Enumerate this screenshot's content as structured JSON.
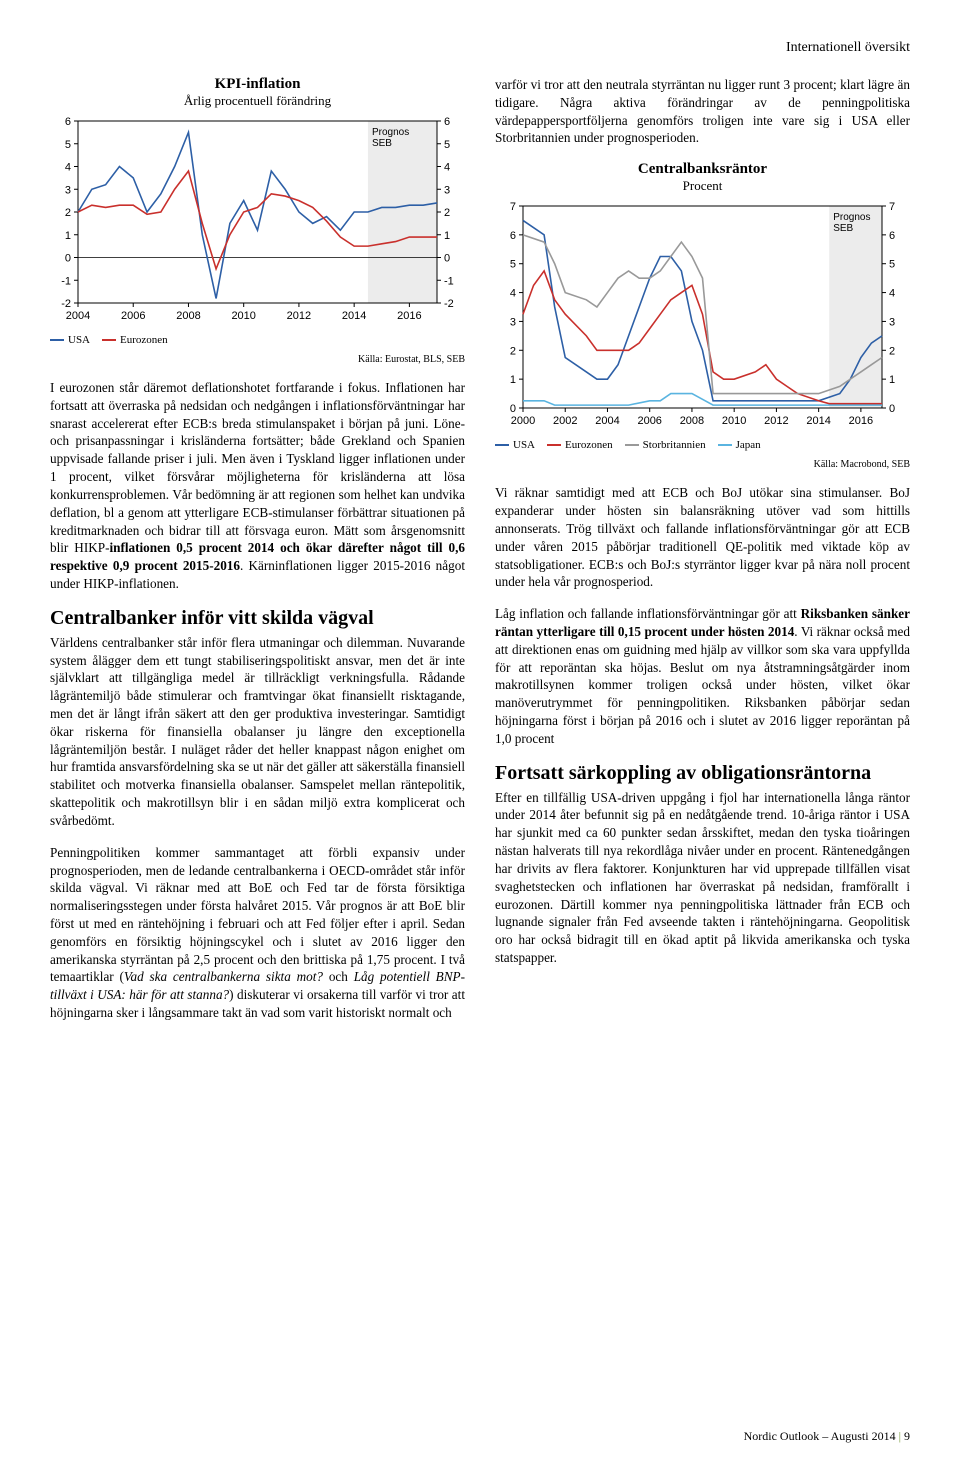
{
  "header": {
    "section": "Internationell översikt"
  },
  "left": {
    "chart1": {
      "type": "line",
      "title": "KPI-inflation",
      "subtitle": "Årlig procentuell förändring",
      "source": "Källa: Eurostat, BLS, SEB",
      "x_ticks": [
        2004,
        2006,
        2008,
        2010,
        2012,
        2014,
        2016
      ],
      "y_ticks": [
        -2,
        -1,
        0,
        1,
        2,
        3,
        4,
        5,
        6
      ],
      "xlim": [
        2004,
        2017
      ],
      "ylim": [
        -2,
        6
      ],
      "prognos_label": "Prognos SEB",
      "prognos_start": 2014.5,
      "background": "#ffffff",
      "grid_color": "#dcdcdc",
      "axis_color": "#000000",
      "series": [
        {
          "name": "USA",
          "color": "#2d5fa6",
          "data": [
            [
              2004,
              2.0
            ],
            [
              2004.5,
              3.0
            ],
            [
              2005,
              3.2
            ],
            [
              2005.5,
              4.0
            ],
            [
              2006,
              3.5
            ],
            [
              2006.5,
              2.0
            ],
            [
              2007,
              2.8
            ],
            [
              2007.5,
              4.0
            ],
            [
              2008,
              5.5
            ],
            [
              2008.5,
              1.0
            ],
            [
              2009,
              -1.8
            ],
            [
              2009.5,
              1.5
            ],
            [
              2010,
              2.5
            ],
            [
              2010.5,
              1.2
            ],
            [
              2011,
              3.8
            ],
            [
              2011.5,
              3.0
            ],
            [
              2012,
              2.0
            ],
            [
              2012.5,
              1.5
            ],
            [
              2013,
              1.8
            ],
            [
              2013.5,
              1.2
            ],
            [
              2014,
              2.0
            ],
            [
              2014.5,
              2.0
            ],
            [
              2015,
              2.2
            ],
            [
              2015.5,
              2.2
            ],
            [
              2016,
              2.3
            ],
            [
              2016.5,
              2.3
            ],
            [
              2017,
              2.4
            ]
          ]
        },
        {
          "name": "Eurozonen",
          "color": "#c9302c",
          "data": [
            [
              2004,
              2.0
            ],
            [
              2004.5,
              2.3
            ],
            [
              2005,
              2.2
            ],
            [
              2005.5,
              2.3
            ],
            [
              2006,
              2.3
            ],
            [
              2006.5,
              1.9
            ],
            [
              2007,
              2.0
            ],
            [
              2007.5,
              3.0
            ],
            [
              2008,
              3.8
            ],
            [
              2008.5,
              1.5
            ],
            [
              2009,
              -0.5
            ],
            [
              2009.5,
              1.0
            ],
            [
              2010,
              2.0
            ],
            [
              2010.5,
              2.2
            ],
            [
              2011,
              2.8
            ],
            [
              2011.5,
              2.7
            ],
            [
              2012,
              2.5
            ],
            [
              2012.5,
              2.2
            ],
            [
              2013,
              1.6
            ],
            [
              2013.5,
              0.9
            ],
            [
              2014,
              0.5
            ],
            [
              2014.5,
              0.5
            ],
            [
              2015,
              0.6
            ],
            [
              2015.5,
              0.7
            ],
            [
              2016,
              0.9
            ],
            [
              2016.5,
              0.9
            ],
            [
              2017,
              0.9
            ]
          ]
        }
      ],
      "legend": [
        "USA",
        "Eurozonen"
      ]
    },
    "para1": "I eurozonen står däremot deflationshotet fortfarande i fokus. Inflationen har fortsatt att överraska på nedsidan och nedgången i inflationsförväntningar har snarast accelererat efter ECB:s breda stimulanspaket i början på juni. Löne- och prisanpassningar i krisländerna fortsätter; både Grekland och Spanien uppvisade fallande priser i juli. Men även i Tyskland ligger inflationen under 1 procent, vilket försvårar möjligheterna för krisländerna att lösa konkurrensproblemen. Vår bedömning är att regionen som helhet kan undvika deflation, bl a genom att ytterligare ECB-stimulanser förbättrar situationen på kreditmarknaden och bidrar till att försvaga euron. Mätt som årsgenomsnitt blir HIKP-inflationen 0,5 procent 2014 och ökar därefter något till 0,6 respektive 0,9 procent 2015-2016. Kärninflationen ligger 2015-2016 något under HIKP-inflationen.",
    "heading1": "Centralbanker inför vitt skilda vägval",
    "para2": "Världens centralbanker står inför flera utmaningar och dilemman. Nuvarande system ålägger dem ett tungt stabiliseringspolitiskt ansvar, men det är inte självklart att tillgängliga medel är tillräckligt verkningsfulla. Rådande lågräntemiljö både stimulerar och framtvingar ökat finansiellt risktagande, men det är långt ifrån säkert att den ger produktiva investeringar. Samtidigt ökar riskerna för finansiella obalanser ju längre den exceptionella lågräntemiljön består. I nuläget råder det heller knappast någon enighet om hur framtida ansvarsfördelning ska se ut när det gäller att säkerställa finansiell stabilitet och motverka finansiella obalanser. Samspelet mellan räntepolitik, skattepolitik och makrotillsyn blir i en sådan miljö extra komplicerat och svårbedömt.",
    "para3": "Penningpolitiken kommer sammantaget att förbli expansiv under prognosperioden, men de ledande centralbankerna i OECD-området står inför skilda vägval. Vi räknar med att BoE och Fed tar de första försiktiga normaliseringsstegen under första halvåret 2015. Vår prognos är att BoE blir först ut med en räntehöjning i februari och att Fed följer efter i april. Sedan genomförs en försiktig höjningscykel och i slutet av 2016 ligger den amerikanska styrräntan på 2,5 procent och den brittiska på 1,75 procent. I två temaartiklar (Vad ska centralbankerna sikta mot? och Låg potentiell BNP-tillväxt i USA: här för att stanna?) diskuterar vi orsakerna till varför vi tror att höjningarna sker i långsammare takt än vad som varit historiskt normalt och"
  },
  "right": {
    "para1": "varför vi tror att den neutrala styrräntan nu ligger runt 3 procent; klart lägre än tidigare. Några aktiva förändringar av de penningpolitiska värdepappersportföljerna genomförs troligen inte vare sig i USA eller Storbritannien under prognosperioden.",
    "chart2": {
      "type": "line-step",
      "title": "Centralbanksräntor",
      "subtitle": "Procent",
      "source": "Källa: Macrobond, SEB",
      "x_ticks": [
        2000,
        2002,
        2004,
        2006,
        2008,
        2010,
        2012,
        2014,
        2016
      ],
      "y_ticks": [
        0,
        1,
        2,
        3,
        4,
        5,
        6,
        7
      ],
      "xlim": [
        2000,
        2017
      ],
      "ylim": [
        0,
        7
      ],
      "prognos_label": "Prognos SEB",
      "prognos_start": 2014.5,
      "background": "#ffffff",
      "grid_color": "#dcdcdc",
      "axis_color": "#000000",
      "series": [
        {
          "name": "USA",
          "color": "#2d5fa6",
          "data": [
            [
              2000,
              6.5
            ],
            [
              2001,
              6.0
            ],
            [
              2001.5,
              3.5
            ],
            [
              2002,
              1.75
            ],
            [
              2003,
              1.25
            ],
            [
              2003.5,
              1.0
            ],
            [
              2004,
              1.0
            ],
            [
              2004.5,
              1.5
            ],
            [
              2005,
              2.5
            ],
            [
              2005.5,
              3.5
            ],
            [
              2006,
              4.5
            ],
            [
              2006.5,
              5.25
            ],
            [
              2007,
              5.25
            ],
            [
              2007.5,
              4.75
            ],
            [
              2008,
              3.0
            ],
            [
              2008.5,
              2.0
            ],
            [
              2009,
              0.25
            ],
            [
              2010,
              0.25
            ],
            [
              2011,
              0.25
            ],
            [
              2012,
              0.25
            ],
            [
              2013,
              0.25
            ],
            [
              2014,
              0.25
            ],
            [
              2015,
              0.5
            ],
            [
              2015.5,
              1.0
            ],
            [
              2016,
              1.75
            ],
            [
              2016.5,
              2.25
            ],
            [
              2017,
              2.5
            ]
          ]
        },
        {
          "name": "Eurozonen",
          "color": "#c9302c",
          "data": [
            [
              2000,
              3.25
            ],
            [
              2000.5,
              4.25
            ],
            [
              2001,
              4.75
            ],
            [
              2001.5,
              3.75
            ],
            [
              2002,
              3.25
            ],
            [
              2003,
              2.5
            ],
            [
              2003.5,
              2.0
            ],
            [
              2004,
              2.0
            ],
            [
              2005,
              2.0
            ],
            [
              2005.5,
              2.25
            ],
            [
              2006,
              2.75
            ],
            [
              2006.5,
              3.25
            ],
            [
              2007,
              3.75
            ],
            [
              2007.5,
              4.0
            ],
            [
              2008,
              4.25
            ],
            [
              2008.5,
              3.25
            ],
            [
              2009,
              1.25
            ],
            [
              2009.5,
              1.0
            ],
            [
              2010,
              1.0
            ],
            [
              2011,
              1.25
            ],
            [
              2011.5,
              1.5
            ],
            [
              2012,
              1.0
            ],
            [
              2012.5,
              0.75
            ],
            [
              2013,
              0.5
            ],
            [
              2014,
              0.25
            ],
            [
              2014.5,
              0.15
            ],
            [
              2015,
              0.15
            ],
            [
              2016,
              0.15
            ],
            [
              2017,
              0.15
            ]
          ]
        },
        {
          "name": "Storbritannien",
          "color": "#999999",
          "data": [
            [
              2000,
              6.0
            ],
            [
              2001,
              5.75
            ],
            [
              2001.5,
              5.0
            ],
            [
              2002,
              4.0
            ],
            [
              2003,
              3.75
            ],
            [
              2003.5,
              3.5
            ],
            [
              2004,
              4.0
            ],
            [
              2004.5,
              4.5
            ],
            [
              2005,
              4.75
            ],
            [
              2005.5,
              4.5
            ],
            [
              2006,
              4.5
            ],
            [
              2006.5,
              4.75
            ],
            [
              2007,
              5.25
            ],
            [
              2007.5,
              5.75
            ],
            [
              2008,
              5.25
            ],
            [
              2008.5,
              4.5
            ],
            [
              2009,
              0.5
            ],
            [
              2010,
              0.5
            ],
            [
              2011,
              0.5
            ],
            [
              2012,
              0.5
            ],
            [
              2013,
              0.5
            ],
            [
              2014,
              0.5
            ],
            [
              2015,
              0.75
            ],
            [
              2015.5,
              1.0
            ],
            [
              2016,
              1.25
            ],
            [
              2016.5,
              1.5
            ],
            [
              2017,
              1.75
            ]
          ]
        },
        {
          "name": "Japan",
          "color": "#5ab4e0",
          "data": [
            [
              2000,
              0.25
            ],
            [
              2001,
              0.25
            ],
            [
              2001.5,
              0.1
            ],
            [
              2002,
              0.1
            ],
            [
              2003,
              0.1
            ],
            [
              2004,
              0.1
            ],
            [
              2005,
              0.1
            ],
            [
              2006,
              0.25
            ],
            [
              2006.5,
              0.25
            ],
            [
              2007,
              0.5
            ],
            [
              2008,
              0.5
            ],
            [
              2008.5,
              0.3
            ],
            [
              2009,
              0.1
            ],
            [
              2010,
              0.1
            ],
            [
              2011,
              0.1
            ],
            [
              2012,
              0.1
            ],
            [
              2013,
              0.1
            ],
            [
              2014,
              0.1
            ],
            [
              2015,
              0.1
            ],
            [
              2016,
              0.1
            ],
            [
              2017,
              0.1
            ]
          ]
        }
      ],
      "legend": [
        "USA",
        "Eurozonen",
        "Storbritannien",
        "Japan"
      ]
    },
    "para2": "Vi räknar samtidigt med att ECB och BoJ utökar sina stimulanser. BoJ expanderar under hösten sin balansräkning utöver vad som hittills annonserats. Trög tillväxt och fallande inflationsförväntningar gör att ECB under våren 2015 påbörjar traditionell QE-politik med viktade köp av statsobligationer. ECB:s och BoJ:s styrräntor ligger kvar på nära noll procent under hela vår prognosperiod.",
    "para3": "Låg inflation och fallande inflationsförväntningar gör att Riksbanken sänker räntan ytterligare till 0,15 procent under hösten 2014. Vi räknar också med att direktionen enas om guidning med hjälp av villkor som ska vara uppfyllda för att reporäntan ska höjas. Beslut om nya åtstramningsåtgärder inom makrotillsynen kommer troligen också under hösten, vilket ökar manöverutrymmet för penningpolitiken. Riksbanken påbörjar sedan höjningarna först i början på 2016 och i slutet av 2016 ligger reporäntan på 1,0 procent",
    "heading2": "Fortsatt särkoppling av obligationsräntorna",
    "para4": "Efter en tillfällig USA-driven uppgång i fjol har internationella långa räntor under 2014 åter befunnit sig på en nedåtgående trend. 10-åriga räntor i USA har sjunkit med ca 60 punkter sedan årsskiftet, medan den tyska tioåringen nästan halverats till nya rekordlåga nivåer under en procent. Räntenedgången har drivits av flera faktorer. Konjunkturen har vid upprepade tillfällen visat svaghetstecken och inflationen har överraskat på nedsidan, framförallt i eurozonen. Därtill kommer nya penningpolitiska lättnader från ECB och lugnande signaler från Fed avseende takten i räntehöjningarna. Geopolitisk oro har också bidragit till en ökad aptit på likvida amerikanska och tyska statspapper."
  },
  "footer": {
    "text": "Nordic Outlook – Augusti 2014",
    "page": "9",
    "sep": "|"
  }
}
